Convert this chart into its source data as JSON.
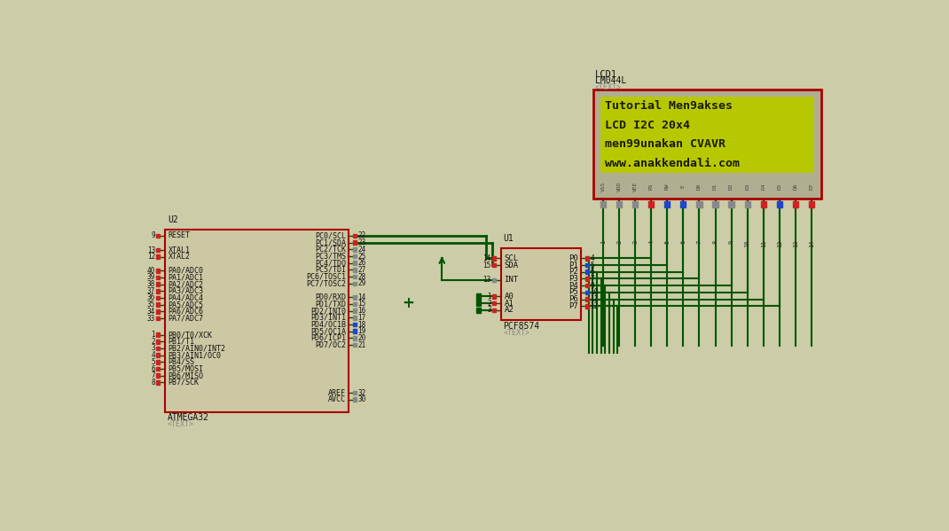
{
  "bg_color": "#cccca8",
  "lcd_bg": "#b8c800",
  "lcd_text_color": "#1a1a00",
  "border_red": "#aa0000",
  "wire_green": "#005500",
  "pin_gray": "#888888",
  "pin_red": "#cc2222",
  "pin_blue": "#2244cc",
  "text_dark": "#111111",
  "text_gray": "#888888",
  "ic_fill": "#ccc8a4",
  "atm_left_pins": [
    [
      "9",
      "RESET",
      252
    ],
    [
      "13",
      "XTAL1",
      273
    ],
    [
      "12",
      "XTAL2",
      283
    ],
    [
      "40",
      "PA0/ADC0",
      303
    ],
    [
      "39",
      "PA1/ADC1",
      313
    ],
    [
      "38",
      "PA2/ADC2",
      323
    ],
    [
      "37",
      "PA3/ADC3",
      333
    ],
    [
      "36",
      "PA4/ADC4",
      343
    ],
    [
      "35",
      "PA5/ADC5",
      353
    ],
    [
      "34",
      "PA6/ADC6",
      363
    ],
    [
      "33",
      "PA7/ADC7",
      373
    ],
    [
      "1",
      "PB0/T0/XCK",
      397
    ],
    [
      "2",
      "PB1/T1",
      407
    ],
    [
      "3",
      "PB2/AIN0/INT2",
      417
    ],
    [
      "4",
      "PB3/AIN1/OC0",
      427
    ],
    [
      "5",
      "PB4/SS",
      437
    ],
    [
      "6",
      "PB5/MOSI",
      447
    ],
    [
      "7",
      "PB6/MISO",
      457
    ],
    [
      "8",
      "PB7/SCK",
      467
    ]
  ],
  "atm_right_pins": [
    [
      "22",
      "PC0/SCL",
      252,
      "red"
    ],
    [
      "23",
      "PC1/SDA",
      262,
      "red"
    ],
    [
      "24",
      "PC2/TCK",
      272,
      "gray"
    ],
    [
      "25",
      "PC3/TMS",
      282,
      "gray"
    ],
    [
      "26",
      "PC4/TDO",
      292,
      "gray"
    ],
    [
      "27",
      "PC5/TDI",
      302,
      "gray"
    ],
    [
      "28",
      "PC6/TOSC1",
      312,
      "gray"
    ],
    [
      "29",
      "PC7/TOSC2",
      322,
      "gray"
    ],
    [
      "14",
      "PD0/RXD",
      342,
      "gray"
    ],
    [
      "15",
      "PD1/TXD",
      352,
      "gray"
    ],
    [
      "16",
      "PD2/INT0",
      362,
      "gray"
    ],
    [
      "17",
      "PD3/INT1",
      372,
      "gray"
    ],
    [
      "18",
      "PD4/OC1B",
      382,
      "blue"
    ],
    [
      "19",
      "PD5/OC1A",
      392,
      "blue"
    ],
    [
      "20",
      "PD6/ICP1",
      402,
      "gray"
    ],
    [
      "21",
      "PD7/OC2",
      412,
      "gray"
    ],
    [
      "32",
      "AREF",
      482,
      "gray"
    ],
    [
      "30",
      "AVCC",
      492,
      "gray"
    ]
  ],
  "pcf_left_pins": [
    [
      "14",
      "SCL",
      285,
      "red"
    ],
    [
      "15",
      "SDA",
      295,
      "red"
    ],
    [
      "13",
      "INT",
      317,
      "gray"
    ],
    [
      "1",
      "A0",
      341,
      "red"
    ],
    [
      "2",
      "A1",
      351,
      "red"
    ],
    [
      "3",
      "A2",
      361,
      "red"
    ]
  ],
  "pcf_right_pins": [
    [
      "4",
      "P0",
      285,
      "red"
    ],
    [
      "5",
      "P1",
      295,
      "blue"
    ],
    [
      "6",
      "P2",
      305,
      "blue"
    ],
    [
      "7",
      "P3",
      315,
      "red"
    ],
    [
      "9",
      "P4",
      325,
      "red"
    ],
    [
      "10",
      "P5",
      335,
      "blue"
    ],
    [
      "11",
      "P6",
      345,
      "red"
    ],
    [
      "12",
      "P7",
      355,
      "red"
    ]
  ],
  "lcd_pin_labels": [
    "VSS",
    "VDD",
    "VEE",
    "RS",
    "RW",
    "E",
    "D0",
    "D1",
    "D2",
    "D3",
    "D4",
    "D5",
    "D6",
    "D7"
  ],
  "lcd_pin_colors": [
    "gray",
    "gray",
    "gray",
    "red",
    "blue",
    "blue",
    "gray",
    "gray",
    "gray",
    "gray",
    "red",
    "blue",
    "red",
    "red"
  ],
  "lcd_lines": [
    "Tutorial Men9akses",
    "LCD I2C 20x4",
    "men99unakan CVAVR",
    "www.anakkendali.com"
  ]
}
